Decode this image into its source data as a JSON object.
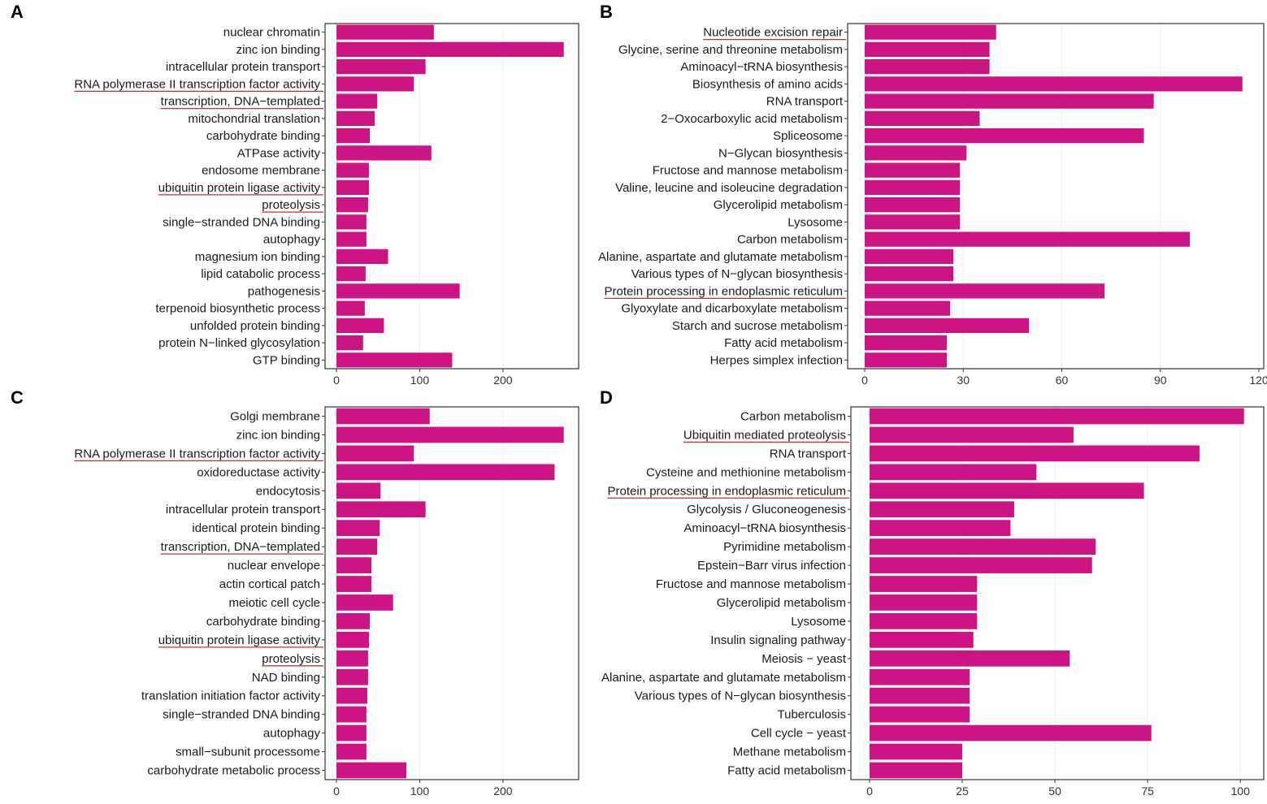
{
  "colors": {
    "bar": "#cc1485",
    "underline": "#c0303a",
    "frame": "#333333"
  },
  "chart_data": [
    {
      "panel": "A",
      "type": "bar",
      "orientation": "horizontal",
      "xlim": [
        0,
        285
      ],
      "ticks": [
        0,
        100,
        200
      ],
      "categories": [
        "nuclear chromatin",
        "zinc ion binding",
        "intracellular protein transport",
        "RNA polymerase II transcription factor activity",
        "transcription, DNA−templated",
        "mitochondrial translation",
        "carbohydrate binding",
        "ATPase activity",
        "endosome membrane",
        "ubiquitin protein ligase activity",
        "proteolysis",
        "single−stranded DNA binding",
        "autophagy",
        "magnesium ion binding",
        "lipid catabolic process",
        "pathogenesis",
        "terpenoid biosynthetic process",
        "unfolded protein binding",
        "protein N−linked glycosylation",
        "GTP binding"
      ],
      "values": [
        117,
        273,
        107,
        93,
        49,
        46,
        40,
        114,
        39,
        39,
        38,
        36,
        36,
        62,
        35,
        148,
        34,
        57,
        32,
        139
      ],
      "underlined": [
        "RNA polymerase II transcription factor activity",
        "transcription, DNA−templated",
        "ubiquitin protein ligase activity",
        "proteolysis"
      ]
    },
    {
      "panel": "B",
      "type": "bar",
      "orientation": "horizontal",
      "xlim": [
        0,
        120
      ],
      "ticks": [
        0,
        30,
        60,
        90,
        120
      ],
      "categories": [
        "Nucleotide excision repair",
        "Glycine, serine and threonine metabolism",
        "Aminoacyl−tRNA biosynthesis",
        "Biosynthesis of amino acids",
        "RNA transport",
        "2−Oxocarboxylic acid metabolism",
        "Spliceosome",
        "N−Glycan biosynthesis",
        "Fructose and mannose metabolism",
        "Valine, leucine and isoleucine degradation",
        "Glycerolipid metabolism",
        "Lysosome",
        "Carbon metabolism",
        "Alanine, aspartate and glutamate metabolism",
        "Various types of N−glycan biosynthesis",
        "Protein processing in endoplasmic reticulum",
        "Glyoxylate and dicarboxylate metabolism",
        "Starch and sucrose metabolism",
        "Fatty acid metabolism",
        "Herpes simplex infection"
      ],
      "values": [
        40,
        38,
        38,
        115,
        88,
        35,
        85,
        31,
        29,
        29,
        29,
        29,
        99,
        27,
        27,
        73,
        26,
        50,
        25,
        25
      ],
      "underlined": [
        "Nucleotide excision repair",
        "Protein processing in endoplasmic reticulum"
      ]
    },
    {
      "panel": "C",
      "type": "bar",
      "orientation": "horizontal",
      "xlim": [
        0,
        285
      ],
      "ticks": [
        0,
        100,
        200
      ],
      "categories": [
        "Golgi membrane",
        "zinc ion binding",
        "RNA polymerase II transcription factor activity",
        "oxidoreductase activity",
        "endocytosis",
        "intracellular protein transport",
        "identical protein binding",
        "transcription, DNA−templated",
        "nuclear envelope",
        "actin cortical patch",
        "meiotic cell cycle",
        "carbohydrate binding",
        "ubiquitin protein ligase activity",
        "proteolysis",
        "NAD binding",
        "translation initiation factor activity",
        "single−stranded DNA binding",
        "autophagy",
        "small−subunit processome",
        "carbohydrate metabolic process"
      ],
      "values": [
        112,
        273,
        93,
        262,
        53,
        107,
        52,
        49,
        42,
        42,
        68,
        40,
        39,
        38,
        38,
        37,
        36,
        36,
        36,
        84
      ],
      "underlined": [
        "RNA polymerase II transcription factor activity",
        "transcription, DNA−templated",
        "ubiquitin protein ligase activity",
        "proteolysis"
      ]
    },
    {
      "panel": "D",
      "type": "bar",
      "orientation": "horizontal",
      "xlim": [
        0,
        105
      ],
      "ticks": [
        0,
        25,
        50,
        75,
        100
      ],
      "categories": [
        "Carbon metabolism",
        "Ubiquitin mediated proteolysis",
        "RNA transport",
        "Cysteine and methionine metabolism",
        "Protein processing in endoplasmic reticulum",
        "Glycolysis / Gluconeogenesis",
        "Aminoacyl−tRNA biosynthesis",
        "Pyrimidine metabolism",
        "Epstein−Barr virus infection",
        "Fructose and mannose metabolism",
        "Glycerolipid metabolism",
        "Lysosome",
        "Insulin signaling pathway",
        "Meiosis − yeast",
        "Alanine, aspartate and glutamate metabolism",
        "Various types of N−glycan biosynthesis",
        "Tuberculosis",
        "Cell cycle − yeast",
        "Methane metabolism",
        "Fatty acid metabolism"
      ],
      "values": [
        101,
        55,
        89,
        45,
        74,
        39,
        38,
        61,
        60,
        29,
        29,
        29,
        28,
        54,
        27,
        27,
        27,
        76,
        25,
        25
      ],
      "underlined": [
        "Ubiquitin mediated proteolysis",
        "Protein processing in endoplasmic reticulum"
      ]
    }
  ]
}
